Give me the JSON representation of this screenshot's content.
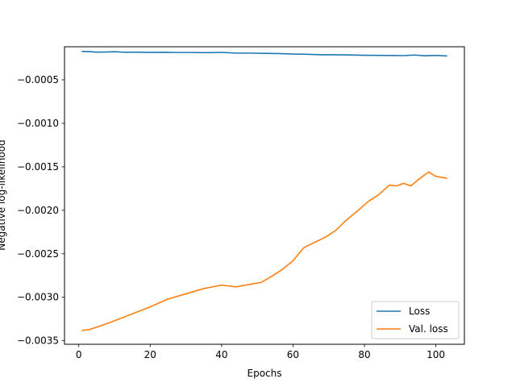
{
  "chart_data": {
    "type": "line",
    "xlabel": "Epochs",
    "ylabel": "Negative log-likelihood",
    "xlim": [
      -4,
      108
    ],
    "ylim": [
      -0.00354,
      -0.00012
    ],
    "xticks": [
      0,
      20,
      40,
      60,
      80,
      100
    ],
    "xtick_labels": [
      "0",
      "20",
      "40",
      "60",
      "80",
      "100"
    ],
    "yticks": [
      -0.0005,
      -0.001,
      -0.0015,
      -0.002,
      -0.0025,
      -0.003,
      -0.0035
    ],
    "ytick_labels": [
      "−0.0005",
      "−0.0010",
      "−0.0015",
      "−0.0020",
      "−0.0025",
      "−0.0030",
      "−0.0035"
    ],
    "grid": false,
    "legend_position": "lower-right",
    "series": [
      {
        "name": "Loss",
        "color": "#1f77b4",
        "points": [
          [
            1,
            -0.000174
          ],
          [
            3,
            -0.000176
          ],
          [
            5,
            -0.000182
          ],
          [
            8,
            -0.00018
          ],
          [
            10,
            -0.000177
          ],
          [
            13,
            -0.000183
          ],
          [
            16,
            -0.000182
          ],
          [
            20,
            -0.000184
          ],
          [
            24,
            -0.000183
          ],
          [
            28,
            -0.000186
          ],
          [
            32,
            -0.000186
          ],
          [
            36,
            -0.000188
          ],
          [
            40,
            -0.000185
          ],
          [
            44,
            -0.000192
          ],
          [
            48,
            -0.000193
          ],
          [
            52,
            -0.000196
          ],
          [
            56,
            -0.000198
          ],
          [
            60,
            -0.000204
          ],
          [
            64,
            -0.000206
          ],
          [
            68,
            -0.000212
          ],
          [
            72,
            -0.000212
          ],
          [
            76,
            -0.000214
          ],
          [
            80,
            -0.000218
          ],
          [
            84,
            -0.000219
          ],
          [
            88,
            -0.00022
          ],
          [
            91,
            -0.000222
          ],
          [
            94,
            -0.000215
          ],
          [
            97,
            -0.000224
          ],
          [
            100,
            -0.000219
          ],
          [
            103,
            -0.000226
          ]
        ]
      },
      {
        "name": "Val. loss",
        "color": "#ff7f0e",
        "points": [
          [
            1,
            -0.00338
          ],
          [
            3,
            -0.00337
          ],
          [
            6,
            -0.00333
          ],
          [
            10,
            -0.00327
          ],
          [
            15,
            -0.00319
          ],
          [
            20,
            -0.00311
          ],
          [
            25,
            -0.00302
          ],
          [
            30,
            -0.00296
          ],
          [
            35,
            -0.0029
          ],
          [
            40,
            -0.00286
          ],
          [
            44,
            -0.00288
          ],
          [
            48,
            -0.00285
          ],
          [
            51,
            -0.00283
          ],
          [
            54,
            -0.00276
          ],
          [
            57,
            -0.00268
          ],
          [
            60,
            -0.00258
          ],
          [
            63,
            -0.00243
          ],
          [
            66,
            -0.00237
          ],
          [
            69,
            -0.00231
          ],
          [
            72,
            -0.00223
          ],
          [
            75,
            -0.00211
          ],
          [
            78,
            -0.00201
          ],
          [
            81,
            -0.0019
          ],
          [
            84,
            -0.00182
          ],
          [
            87,
            -0.00171
          ],
          [
            89,
            -0.00172
          ],
          [
            91,
            -0.00169
          ],
          [
            93,
            -0.00172
          ],
          [
            95,
            -0.00165
          ],
          [
            98,
            -0.00156
          ],
          [
            100,
            -0.00161
          ],
          [
            103,
            -0.00163
          ]
        ]
      }
    ]
  }
}
